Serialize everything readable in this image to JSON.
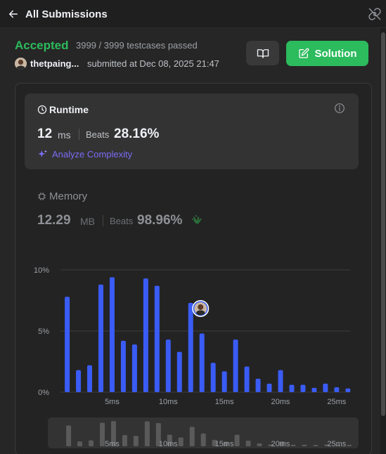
{
  "header": {
    "back_label": "All Submissions",
    "back_icon": "arrow-left-icon",
    "link_icon": "link-icon"
  },
  "submission": {
    "status": "Accepted",
    "testcases": "3999 / 3999 testcases passed",
    "username": "thetpaing...",
    "submitted": "submitted at Dec 08, 2025 21:47",
    "status_color": "#2cbb5d"
  },
  "actions": {
    "editorial_icon": "book-open-icon",
    "solution_label": "Solution",
    "solution_icon": "edit-icon",
    "accent": "#2cbb5d"
  },
  "runtime": {
    "title": "Runtime",
    "value": "12",
    "unit": "ms",
    "beats_label": "Beats",
    "beats": "28.16%",
    "analyze_label": "Analyze Complexity"
  },
  "memory": {
    "title": "Memory",
    "value": "12.29",
    "unit": "MB",
    "beats_label": "Beats",
    "beats": "98.96%"
  },
  "chart_data": {
    "type": "bar",
    "x_ticks": [
      {
        "value": 5,
        "label": "5ms"
      },
      {
        "value": 10,
        "label": "10ms"
      },
      {
        "value": 15,
        "label": "15ms"
      },
      {
        "value": 20,
        "label": "20ms"
      },
      {
        "value": 25,
        "label": "25ms"
      }
    ],
    "y_ticks": [
      {
        "value": 0,
        "label": "0%"
      },
      {
        "value": 5,
        "label": "5%"
      },
      {
        "value": 10,
        "label": "10%"
      }
    ],
    "ylim": [
      0,
      10
    ],
    "xlim": [
      0.4,
      26.2
    ],
    "x": [
      1,
      2,
      3,
      4,
      5,
      6,
      7,
      8,
      9,
      10,
      11,
      12,
      13,
      14,
      15,
      16,
      17,
      18,
      19,
      20,
      21,
      22,
      23,
      24,
      25,
      26
    ],
    "values": [
      7.8,
      1.8,
      2.2,
      8.8,
      9.4,
      4.2,
      3.9,
      9.3,
      8.7,
      4.3,
      3.3,
      7.3,
      4.8,
      2.4,
      1.7,
      4.3,
      2.1,
      1.1,
      0.7,
      1.8,
      0.6,
      0.6,
      0.35,
      0.7,
      0.4,
      0.3
    ],
    "highlight_x": 12,
    "bar_color": "#3a5cf5",
    "grid": true
  },
  "minimap": {
    "values": [
      7.8,
      1.8,
      2.2,
      8.8,
      9.4,
      4.2,
      3.9,
      9.3,
      8.7,
      4.3,
      3.3,
      7.3,
      4.8,
      2.4,
      1.7,
      4.3,
      2.1,
      1.1,
      0.7,
      1.8,
      0.6,
      0.6,
      0.35,
      0.7,
      0.4,
      0.3
    ],
    "ticks": [
      "5ms",
      "10ms",
      "15ms",
      "20ms",
      "25ms"
    ]
  }
}
